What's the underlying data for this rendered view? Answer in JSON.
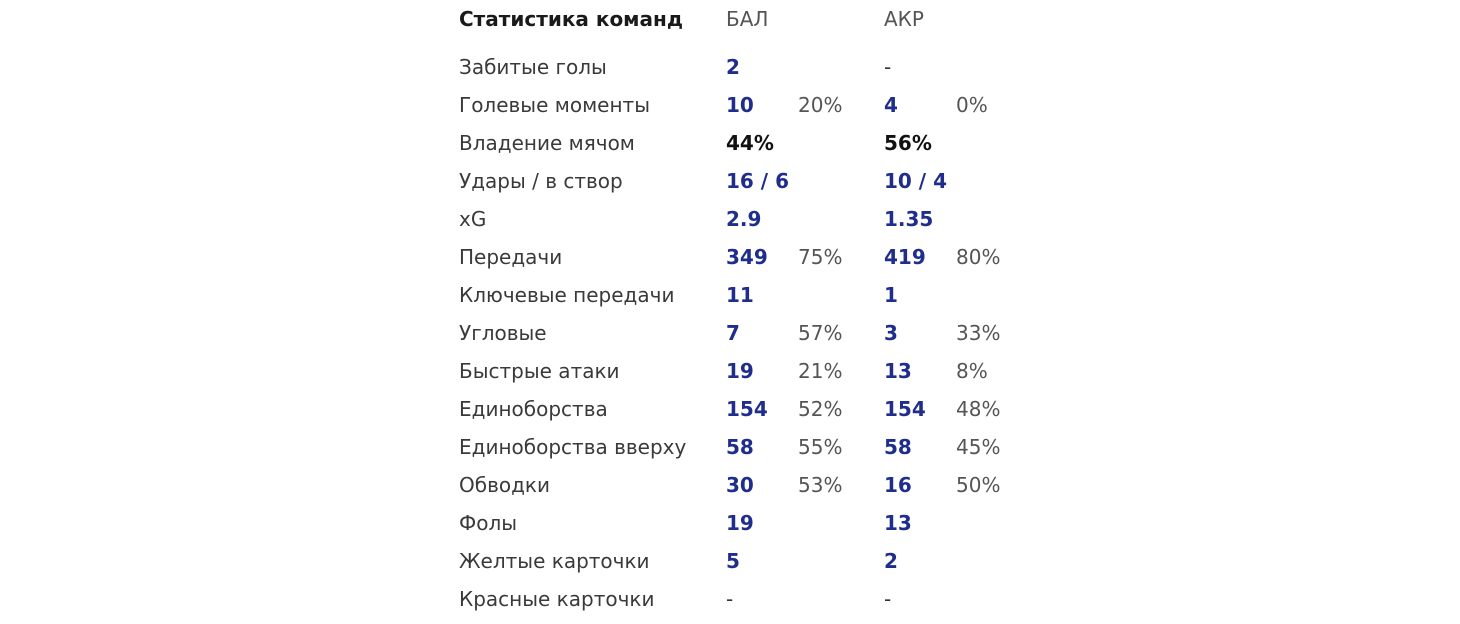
{
  "header": {
    "title": "Статистика команд",
    "team1": "БАЛ",
    "team2": "АКР"
  },
  "rows": [
    {
      "label": "Забитые голы",
      "v1": "2",
      "p1": "",
      "v2": "-",
      "p2": ""
    },
    {
      "label": "Голевые моменты",
      "v1": "10",
      "p1": "20%",
      "v2": "4",
      "p2": "0%"
    },
    {
      "label": "Владение мячом",
      "v1": "44%",
      "p1": "",
      "v2": "56%",
      "p2": ""
    },
    {
      "label": "Удары / в створ",
      "v1": "16 / 6",
      "p1": "",
      "v2": "10 / 4",
      "p2": ""
    },
    {
      "label": "xG",
      "v1": "2.9",
      "p1": "",
      "v2": "1.35",
      "p2": ""
    },
    {
      "label": "Передачи",
      "v1": "349",
      "p1": "75%",
      "v2": "419",
      "p2": "80%"
    },
    {
      "label": "Ключевые передачи",
      "v1": "11",
      "p1": "",
      "v2": "1",
      "p2": ""
    },
    {
      "label": "Угловые",
      "v1": "7",
      "p1": "57%",
      "v2": "3",
      "p2": "33%"
    },
    {
      "label": "Быстрые атаки",
      "v1": "19",
      "p1": "21%",
      "v2": "13",
      "p2": "8%"
    },
    {
      "label": "Единоборства",
      "v1": "154",
      "p1": "52%",
      "v2": "154",
      "p2": "48%"
    },
    {
      "label": "Единоборства вверху",
      "v1": "58",
      "p1": "55%",
      "v2": "58",
      "p2": "45%"
    },
    {
      "label": "Обводки",
      "v1": "30",
      "p1": "53%",
      "v2": "16",
      "p2": "50%"
    },
    {
      "label": "Фолы",
      "v1": "19",
      "p1": "",
      "v2": "13",
      "p2": ""
    },
    {
      "label": "Желтые карточки",
      "v1": "5",
      "p1": "",
      "v2": "2",
      "p2": ""
    },
    {
      "label": "Красные карточки",
      "v1": "-",
      "p1": "",
      "v2": "-",
      "p2": ""
    }
  ],
  "colors": {
    "value": "#1f2d8c",
    "possession": "#111111",
    "label": "#3a3a3a"
  }
}
